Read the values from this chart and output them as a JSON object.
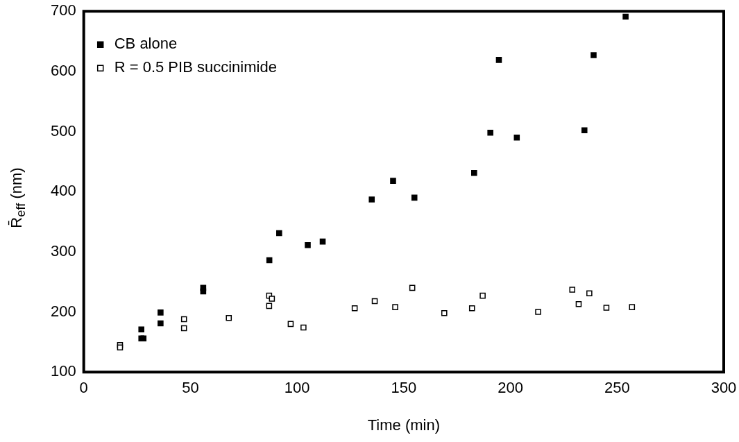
{
  "chart_data": {
    "type": "scatter",
    "xlabel": "Time (min)",
    "ylabel": "R̄$_{eff}$ (nm)",
    "xlim": [
      0,
      300
    ],
    "xticks": [
      0,
      50,
      100,
      150,
      200,
      250,
      300
    ],
    "ylim": [
      100,
      700
    ],
    "yticks": [
      100,
      200,
      300,
      400,
      500,
      600,
      700
    ],
    "grid": false,
    "legend": "top left",
    "marker": "square",
    "series": [
      {
        "name": "CB alone",
        "color": "#000000",
        "x": [
          27,
          27,
          28,
          36,
          36,
          56,
          56,
          87,
          91.6,
          105,
          112,
          135,
          145,
          155,
          183,
          190.6,
          194.6,
          203,
          234.7,
          239,
          254
        ],
        "values": [
          171,
          156,
          156,
          199,
          181,
          240,
          234,
          286,
          331,
          311,
          317,
          387,
          418,
          390,
          431,
          498,
          619,
          490,
          502,
          627,
          691
        ]
      },
      {
        "name": "R = 0.5 PIB succinimide",
        "color": "#000000",
        "x": [
          17,
          17,
          47,
          47,
          68,
          86.9,
          88.2,
          86.9,
          97,
          103,
          127,
          136.4,
          154,
          146,
          169,
          182,
          187,
          213,
          229,
          232,
          237,
          245,
          257
        ],
        "values": [
          145,
          141,
          188,
          173,
          190,
          227,
          222,
          210,
          180,
          174,
          206,
          218,
          240,
          208,
          198,
          206,
          227,
          200,
          237,
          213,
          231,
          207,
          208
        ]
      }
    ]
  }
}
